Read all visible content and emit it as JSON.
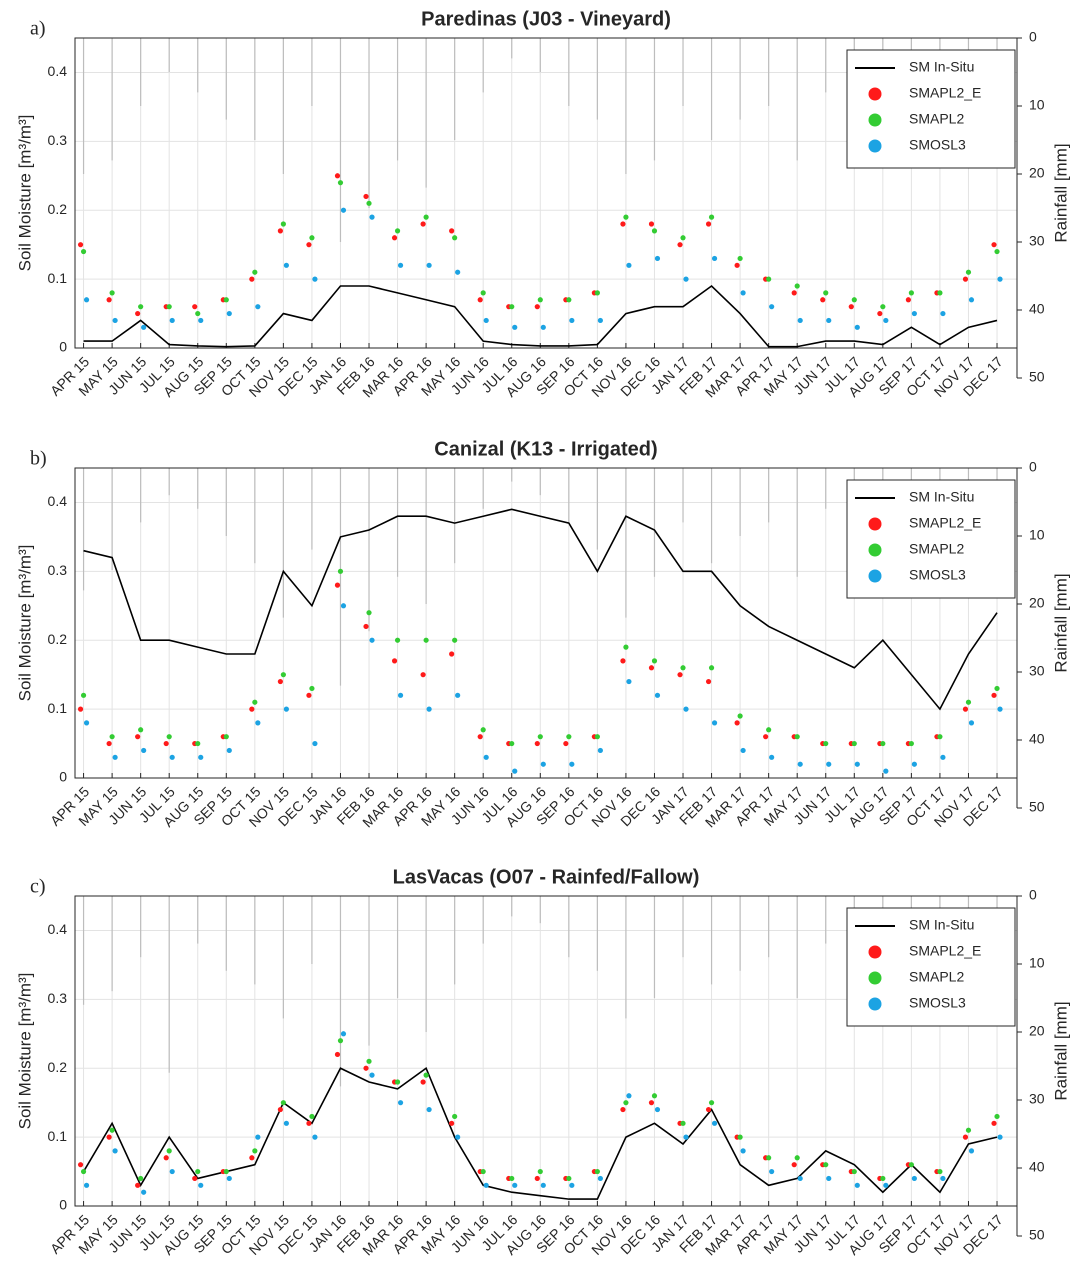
{
  "chart_data": [
    {
      "type": "combo",
      "label": "a)",
      "title": "Paredinas (J03 - Vineyard)",
      "y_label": "Soil Moisture [m³/m³]",
      "y2_label": "Rainfall [mm]",
      "categories": [
        "APR 15",
        "MAY 15",
        "JUN 15",
        "JUL 15",
        "AUG 15",
        "SEP 15",
        "OCT 15",
        "NOV 15",
        "DEC 15",
        "JAN 16",
        "FEB 16",
        "MAR 16",
        "APR 16",
        "MAY 16",
        "JUN 16",
        "JUL 16",
        "AUG 16",
        "SEP 16",
        "OCT 16",
        "NOV 16",
        "DEC 16",
        "JAN 17",
        "FEB 17",
        "MAR 17",
        "APR 17",
        "MAY 17",
        "JUN 17",
        "JUL 17",
        "AUG 17",
        "SEP 17",
        "OCT 17",
        "NOV 17",
        "DEC 17"
      ],
      "ylim": [
        0,
        0.45
      ],
      "yticks": [
        0,
        0.1,
        0.2,
        0.3,
        0.4
      ],
      "y2lim": [
        0,
        50
      ],
      "y2ticks": [
        0,
        10,
        20,
        30,
        40,
        50
      ],
      "y2_inverted": true,
      "grid": true,
      "legend": "upper right",
      "series": [
        {
          "type": "rain",
          "axis": "y2",
          "color": "#bdbdbd",
          "values": [
            20,
            18,
            10,
            5,
            8,
            12,
            15,
            20,
            10,
            30,
            25,
            18,
            22,
            15,
            8,
            3,
            5,
            10,
            12,
            20,
            18,
            10,
            15,
            12,
            10,
            18,
            8,
            10,
            6,
            12,
            8,
            15,
            10
          ]
        },
        {
          "name": "SM In-Situ",
          "type": "line",
          "color": "#000000",
          "values": [
            0.01,
            0.01,
            0.04,
            0.005,
            0.003,
            0.002,
            0.003,
            0.05,
            0.04,
            0.09,
            0.09,
            0.08,
            0.07,
            0.06,
            0.01,
            0.005,
            0.003,
            0.003,
            0.005,
            0.05,
            0.06,
            0.06,
            0.09,
            0.05,
            0.002,
            0.002,
            0.01,
            0.01,
            0.005,
            0.03,
            0.005,
            0.03,
            0.04
          ]
        },
        {
          "name": "SMAPL2_E",
          "type": "scatter",
          "color": "#ff1a1a",
          "values": [
            0.15,
            0.07,
            0.05,
            0.06,
            0.06,
            0.07,
            0.1,
            0.17,
            0.15,
            0.25,
            0.22,
            0.16,
            0.18,
            0.17,
            0.07,
            0.06,
            0.06,
            0.07,
            0.08,
            0.18,
            0.18,
            0.15,
            0.18,
            0.12,
            0.1,
            0.08,
            0.07,
            0.06,
            0.05,
            0.07,
            0.08,
            0.1,
            0.15
          ]
        },
        {
          "name": "SMAPL2",
          "type": "scatter",
          "color": "#33cc33",
          "values": [
            0.14,
            0.08,
            0.06,
            0.06,
            0.05,
            0.07,
            0.11,
            0.18,
            0.16,
            0.24,
            0.21,
            0.17,
            0.19,
            0.16,
            0.08,
            0.06,
            0.07,
            0.07,
            0.08,
            0.19,
            0.17,
            0.16,
            0.19,
            0.13,
            0.1,
            0.09,
            0.08,
            0.07,
            0.06,
            0.08,
            0.08,
            0.11,
            0.14
          ]
        },
        {
          "name": "SMOSL3",
          "type": "scatter",
          "color": "#1ca3e3",
          "values": [
            0.07,
            0.04,
            0.03,
            0.04,
            0.04,
            0.05,
            0.06,
            0.12,
            0.1,
            0.2,
            0.19,
            0.12,
            0.12,
            0.11,
            0.04,
            0.03,
            0.03,
            0.04,
            0.04,
            0.12,
            0.13,
            0.1,
            0.13,
            0.08,
            0.06,
            0.04,
            0.04,
            0.03,
            0.04,
            0.05,
            0.05,
            0.07,
            0.1
          ]
        }
      ]
    },
    {
      "type": "combo",
      "label": "b)",
      "title": "Canizal (K13 - Irrigated)",
      "y_label": "Soil Moisture [m³/m³]",
      "y2_label": "Rainfall [mm]",
      "categories": [
        "APR 15",
        "MAY 15",
        "JUN 15",
        "JUL 15",
        "AUG 15",
        "SEP 15",
        "OCT 15",
        "NOV 15",
        "DEC 15",
        "JAN 16",
        "FEB 16",
        "MAR 16",
        "APR 16",
        "MAY 16",
        "JUN 16",
        "JUL 16",
        "AUG 16",
        "SEP 16",
        "OCT 16",
        "NOV 16",
        "DEC 16",
        "JAN 17",
        "FEB 17",
        "MAR 17",
        "APR 17",
        "MAY 17",
        "JUN 17",
        "JUL 17",
        "AUG 17",
        "SEP 17",
        "OCT 17",
        "NOV 17",
        "DEC 17"
      ],
      "ylim": [
        0,
        0.45
      ],
      "yticks": [
        0,
        0.1,
        0.2,
        0.3,
        0.4
      ],
      "y2lim": [
        0,
        50
      ],
      "y2ticks": [
        0,
        10,
        20,
        30,
        40,
        50
      ],
      "y2_inverted": true,
      "grid": true,
      "legend": "upper right",
      "series": [
        {
          "type": "rain",
          "axis": "y2",
          "color": "#bdbdbd",
          "values": [
            18,
            15,
            8,
            4,
            6,
            10,
            14,
            22,
            12,
            32,
            24,
            16,
            20,
            14,
            6,
            2,
            4,
            8,
            12,
            22,
            16,
            8,
            14,
            10,
            8,
            16,
            6,
            8,
            5,
            10,
            7,
            14,
            9
          ]
        },
        {
          "name": "SM In-Situ",
          "type": "line",
          "color": "#000000",
          "values": [
            0.33,
            0.32,
            0.2,
            0.2,
            0.19,
            0.18,
            0.18,
            0.3,
            0.25,
            0.35,
            0.36,
            0.38,
            0.38,
            0.37,
            0.38,
            0.39,
            0.38,
            0.37,
            0.3,
            0.38,
            0.36,
            0.3,
            0.3,
            0.25,
            0.22,
            0.2,
            0.18,
            0.16,
            0.2,
            0.15,
            0.1,
            0.18,
            0.24
          ]
        },
        {
          "name": "SMAPL2_E",
          "type": "scatter",
          "color": "#ff1a1a",
          "values": [
            0.1,
            0.05,
            0.06,
            0.05,
            0.05,
            0.06,
            0.1,
            0.14,
            0.12,
            0.28,
            0.22,
            0.17,
            0.15,
            0.18,
            0.06,
            0.05,
            0.05,
            0.05,
            0.06,
            0.17,
            0.16,
            0.15,
            0.14,
            0.08,
            0.06,
            0.06,
            0.05,
            0.05,
            0.05,
            0.05,
            0.06,
            0.1,
            0.12
          ]
        },
        {
          "name": "SMAPL2",
          "type": "scatter",
          "color": "#33cc33",
          "values": [
            0.12,
            0.06,
            0.07,
            0.06,
            0.05,
            0.06,
            0.11,
            0.15,
            0.13,
            0.3,
            0.24,
            0.2,
            0.2,
            0.2,
            0.07,
            0.05,
            0.06,
            0.06,
            0.06,
            0.19,
            0.17,
            0.16,
            0.16,
            0.09,
            0.07,
            0.06,
            0.05,
            0.05,
            0.05,
            0.05,
            0.06,
            0.11,
            0.13
          ]
        },
        {
          "name": "SMOSL3",
          "type": "scatter",
          "color": "#1ca3e3",
          "values": [
            0.08,
            0.03,
            0.04,
            0.03,
            0.03,
            0.04,
            0.08,
            0.1,
            0.05,
            0.25,
            0.2,
            0.12,
            0.1,
            0.12,
            0.03,
            0.01,
            0.02,
            0.02,
            0.04,
            0.14,
            0.12,
            0.1,
            0.08,
            0.04,
            0.03,
            0.02,
            0.02,
            0.02,
            0.01,
            0.02,
            0.03,
            0.08,
            0.1
          ]
        }
      ]
    },
    {
      "type": "combo",
      "label": "c)",
      "title": "LasVacas (O07 - Rainfed/Fallow)",
      "y_label": "Soil Moisture [m³/m³]",
      "y2_label": "Rainfall [mm]",
      "categories": [
        "APR 15",
        "MAY 15",
        "JUN 15",
        "JUL 15",
        "AUG 15",
        "SEP 15",
        "OCT 15",
        "NOV 15",
        "DEC 15",
        "JAN 16",
        "FEB 16",
        "MAR 16",
        "APR 16",
        "MAY 16",
        "JUN 16",
        "JUL 16",
        "AUG 16",
        "SEP 16",
        "OCT 16",
        "NOV 16",
        "DEC 16",
        "JAN 17",
        "FEB 17",
        "MAR 17",
        "APR 17",
        "MAY 17",
        "JUN 17",
        "JUL 17",
        "AUG 17",
        "SEP 17",
        "OCT 17",
        "NOV 17",
        "DEC 17"
      ],
      "ylim": [
        0,
        0.45
      ],
      "yticks": [
        0,
        0.1,
        0.2,
        0.3,
        0.4
      ],
      "y2lim": [
        0,
        50
      ],
      "y2ticks": [
        0,
        10,
        20,
        30,
        40,
        50
      ],
      "y2_inverted": true,
      "grid": true,
      "legend": "upper right",
      "series": [
        {
          "type": "rain",
          "axis": "y2",
          "color": "#bdbdbd",
          "values": [
            16,
            14,
            9,
            26,
            7,
            11,
            13,
            18,
            10,
            28,
            22,
            15,
            20,
            13,
            7,
            3,
            4,
            9,
            11,
            18,
            15,
            9,
            13,
            11,
            9,
            15,
            7,
            9,
            5,
            11,
            6,
            13,
            8
          ]
        },
        {
          "name": "SM In-Situ",
          "type": "line",
          "color": "#000000",
          "values": [
            0.05,
            0.12,
            0.03,
            0.1,
            0.04,
            0.05,
            0.06,
            0.15,
            0.12,
            0.2,
            0.18,
            0.17,
            0.2,
            0.1,
            0.03,
            0.02,
            0.015,
            0.01,
            0.01,
            0.1,
            0.12,
            0.09,
            0.14,
            0.06,
            0.03,
            0.04,
            0.08,
            0.06,
            0.02,
            0.06,
            0.02,
            0.09,
            0.1
          ]
        },
        {
          "name": "SMAPL2_E",
          "type": "scatter",
          "color": "#ff1a1a",
          "values": [
            0.06,
            0.1,
            0.03,
            0.07,
            0.04,
            0.05,
            0.07,
            0.14,
            0.12,
            0.22,
            0.2,
            0.18,
            0.18,
            0.12,
            0.05,
            0.04,
            0.04,
            0.04,
            0.05,
            0.14,
            0.15,
            0.12,
            0.14,
            0.1,
            0.07,
            0.06,
            0.06,
            0.05,
            0.04,
            0.06,
            0.05,
            0.1,
            0.12
          ]
        },
        {
          "name": "SMAPL2",
          "type": "scatter",
          "color": "#33cc33",
          "values": [
            0.05,
            0.11,
            0.04,
            0.08,
            0.05,
            0.05,
            0.08,
            0.15,
            0.13,
            0.24,
            0.21,
            0.18,
            0.19,
            0.13,
            0.05,
            0.04,
            0.05,
            0.04,
            0.05,
            0.15,
            0.16,
            0.12,
            0.15,
            0.1,
            0.07,
            0.07,
            0.06,
            0.05,
            0.04,
            0.06,
            0.05,
            0.11,
            0.13
          ]
        },
        {
          "name": "SMOSL3",
          "type": "scatter",
          "color": "#1ca3e3",
          "values": [
            0.03,
            0.08,
            0.02,
            0.05,
            0.03,
            0.04,
            0.1,
            0.12,
            0.1,
            0.25,
            0.19,
            0.15,
            0.14,
            0.1,
            0.03,
            0.03,
            0.03,
            0.03,
            0.04,
            0.16,
            0.14,
            0.1,
            0.12,
            0.08,
            0.05,
            0.04,
            0.04,
            0.03,
            0.03,
            0.04,
            0.04,
            0.08,
            0.1
          ]
        }
      ]
    }
  ]
}
